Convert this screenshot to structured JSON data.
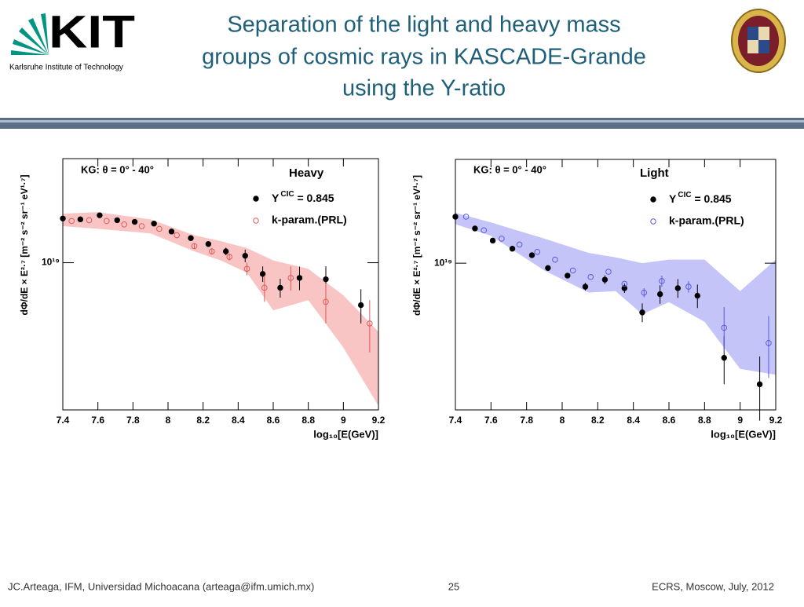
{
  "header": {
    "logo_text": "KIT",
    "logo_subtitle": "Karlsruhe Institute of Technology",
    "title_lines": [
      "Separation of the light and heavy mass",
      "groups of cosmic rays in KASCADE-Grande",
      "using the Y-ratio"
    ]
  },
  "footer": {
    "left": "JC.Arteaga, IFM,  Universidad Michoacana  (arteaga@ifm.umich.mx)",
    "page": "25",
    "right": "ECRS, Moscow, July, 2012"
  },
  "chart_data": [
    {
      "type": "scatter",
      "title": "Heavy",
      "annotation": "KG: θ = 0° - 40°",
      "x_label": "log₁₀[E(GeV)]",
      "y_label": "dΦ/dE × E²·⁷ [m⁻² s⁻² sr⁻¹ eV¹·⁷]",
      "xlim": [
        7.4,
        9.2
      ],
      "xticks": [
        7.4,
        7.6,
        7.8,
        8,
        8.2,
        8.4,
        8.6,
        8.8,
        9,
        9.2
      ],
      "ylim": [
        2.9e+18,
        2.4e+19
      ],
      "log_y": true,
      "yticks": [
        {
          "value": 1e+19,
          "label": "10¹⁹"
        }
      ],
      "band": {
        "color": "#f9c4c4",
        "x": [
          7.4,
          7.6,
          7.9,
          8.15,
          8.3,
          8.45,
          8.6,
          8.8,
          9.0,
          9.2
        ],
        "upper": [
          1.51e+19,
          1.53e+19,
          1.44e+19,
          1.26e+19,
          1.2e+19,
          1.13e+19,
          1.02e+19,
          9.5e+18,
          7.6e+18,
          5.6e+18
        ],
        "lower": [
          1.36e+19,
          1.33e+19,
          1.28e+19,
          1.1e+19,
          1.02e+19,
          9.2e+18,
          6.7e+18,
          7.3e+18,
          4.9e+18,
          3e+18
        ]
      },
      "series": [
        {
          "name": "YCIC = 0.845",
          "color": "#000000",
          "marker": "filled",
          "x": [
            7.4,
            7.5,
            7.61,
            7.71,
            7.81,
            7.92,
            8.02,
            8.13,
            8.23,
            8.33,
            8.44,
            8.54,
            8.64,
            8.75,
            8.9,
            9.1
          ],
          "values": [
            1.45e+19,
            1.44e+19,
            1.49e+19,
            1.43e+19,
            1.41e+19,
            1.39e+19,
            1.3e+19,
            1.23e+19,
            1.17e+19,
            1.1e+19,
            1.06e+19,
            9.1e+18,
            8.1e+18,
            8.8e+18,
            8.7e+18,
            7e+18
          ],
          "errors": [
            null,
            null,
            null,
            null,
            null,
            null,
            null,
            null,
            2.5e+17,
            3.5e+17,
            5.6e+17,
            6e+17,
            6.4e+17,
            8.7e+17,
            1e+18,
            1e+18
          ]
        },
        {
          "name": "k-param.(PRL)",
          "color": "#e05a5a",
          "marker": "open",
          "x": [
            7.45,
            7.55,
            7.65,
            7.75,
            7.85,
            7.95,
            8.05,
            8.15,
            8.25,
            8.35,
            8.45,
            8.55,
            8.7,
            8.9,
            9.15
          ],
          "values": [
            1.42e+19,
            1.43e+19,
            1.42e+19,
            1.38e+19,
            1.36e+19,
            1.33e+19,
            1.26e+19,
            1.15e+19,
            1.1e+19,
            1.05e+19,
            9.5e+18,
            8.1e+18,
            8.8e+18,
            7.2e+18,
            6e+18
          ],
          "errors": [
            null,
            null,
            null,
            null,
            null,
            null,
            null,
            2.5e+17,
            3e+17,
            3e+17,
            5e+17,
            9e+17,
            9e+17,
            1.2e+18,
            1.3e+18
          ]
        }
      ]
    },
    {
      "type": "scatter",
      "title": "Light",
      "annotation": "KG: θ = 0° - 40°",
      "x_label": "log₁₀[E(GeV)]",
      "y_label": "dΦ/dE × E²·⁷ [m⁻² s⁻² sr⁻¹ eV¹·⁷]",
      "xlim": [
        7.4,
        9.2
      ],
      "xticks": [
        7.4,
        7.6,
        7.8,
        8,
        8.2,
        8.4,
        8.6,
        8.8,
        9,
        9.2
      ],
      "ylim": [
        2.9e+18,
        2.4e+19
      ],
      "log_y": true,
      "yticks": [
        {
          "value": 1e+19,
          "label": "10¹⁹"
        }
      ],
      "band": {
        "color": "#c4c4f8",
        "x": [
          7.4,
          7.6,
          7.9,
          8.15,
          8.3,
          8.45,
          8.6,
          8.8,
          9.0,
          9.2
        ],
        "upper": [
          1.53e+19,
          1.41e+19,
          1.23e+19,
          1.09e+19,
          1.05e+19,
          1e+19,
          1.03e+19,
          1.03e+19,
          7.9e+18,
          1.03e+19
        ],
        "lower": [
          1.39e+19,
          1.26e+19,
          9.4e+18,
          7.8e+18,
          7.9e+18,
          6.5e+18,
          7.2e+18,
          6.1e+18,
          4.1e+18,
          3.9e+18
        ]
      },
      "series": [
        {
          "name": "YCIC = 0.845",
          "color": "#000000",
          "marker": "filled",
          "x": [
            7.4,
            7.51,
            7.61,
            7.72,
            7.83,
            7.92,
            8.03,
            8.13,
            8.24,
            8.35,
            8.45,
            8.55,
            8.65,
            8.76,
            8.91,
            9.11
          ],
          "values": [
            1.48e+19,
            1.34e+19,
            1.21e+19,
            1.13e+19,
            1.07e+19,
            9.6e+18,
            9e+18,
            8.2e+18,
            8.7e+18,
            8.1e+18,
            6.6e+18,
            7.7e+18,
            8.1e+18,
            7.6e+18,
            4.5e+18,
            3.6e+18
          ],
          "errors": [
            null,
            null,
            null,
            null,
            null,
            null,
            null,
            2.7e+17,
            3.2e+17,
            3.2e+17,
            5.2e+17,
            6e+17,
            6.4e+17,
            7.5e+17,
            9e+17,
            9.5e+17
          ]
        },
        {
          "name": "k-param.(PRL)",
          "color": "#5a5ae0",
          "marker": "open",
          "x": [
            7.46,
            7.56,
            7.66,
            7.76,
            7.86,
            7.96,
            8.06,
            8.16,
            8.26,
            8.35,
            8.46,
            8.56,
            8.71,
            8.91,
            9.16
          ],
          "values": [
            1.48e+19,
            1.32e+19,
            1.23e+19,
            1.17e+19,
            1.1e+19,
            1.03e+19,
            9.4e+18,
            8.9e+18,
            9.3e+18,
            8.4e+18,
            7.8e+18,
            8.6e+18,
            8.2e+18,
            5.8e+18,
            5.1e+18
          ],
          "errors": [
            null,
            null,
            null,
            null,
            null,
            null,
            null,
            null,
            null,
            null,
            3e+17,
            4e+17,
            4e+17,
            1.1e+18,
            1.3e+18
          ]
        }
      ]
    }
  ]
}
